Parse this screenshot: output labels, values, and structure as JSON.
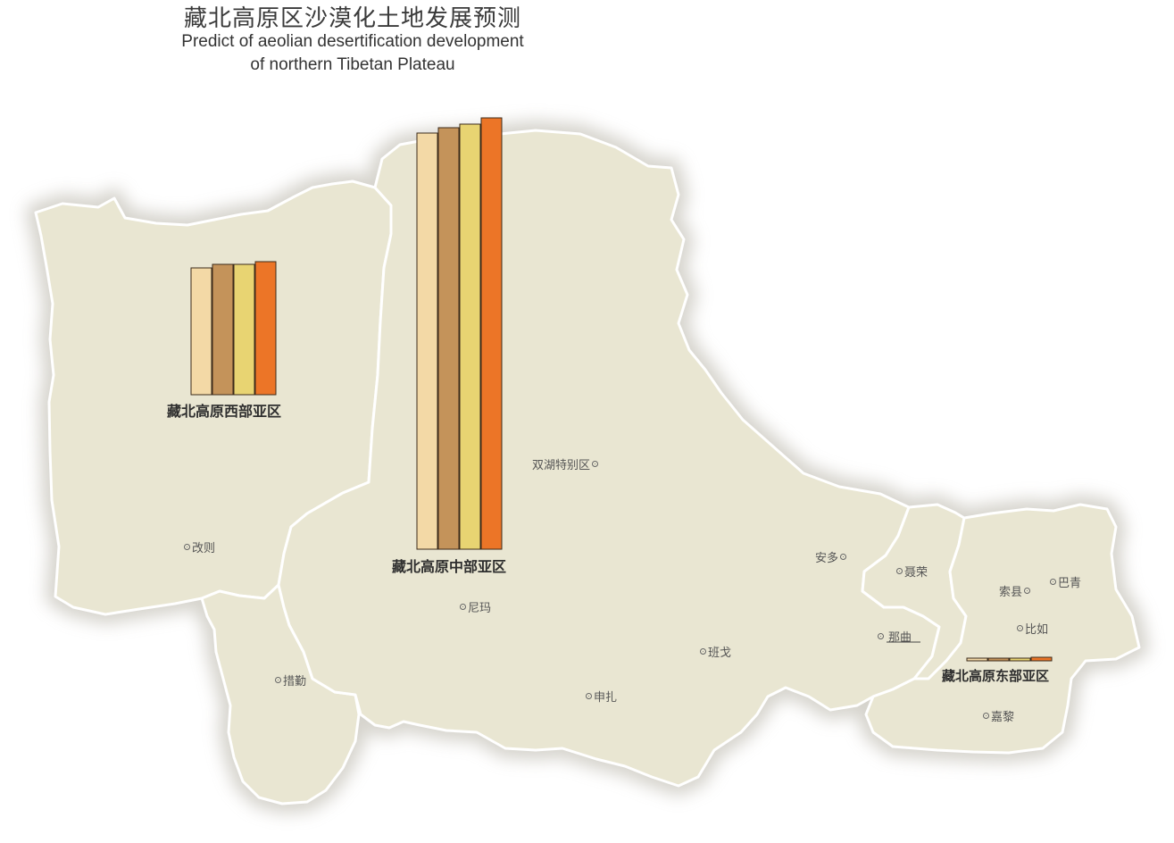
{
  "title": {
    "cn": "藏北高原区沙漠化土地发展预测",
    "en_line1": "Predict of aeolian desertification development",
    "en_line2": "of northern Tibetan Plateau"
  },
  "colors": {
    "land": "#e9e6d2",
    "border": "#ffffff",
    "shadow": "#cfccc4",
    "bar_colors": [
      "#f3d9a6",
      "#c4935a",
      "#e8d472",
      "#ec7527"
    ],
    "bar_stroke": "#3b2a1a"
  },
  "regions": {
    "west": {
      "name": "藏北高原西部亚区"
    },
    "central": {
      "name": "藏北高原中部亚区"
    },
    "east": {
      "name": "藏北高原东部亚区"
    }
  },
  "chart_data": [
    {
      "type": "bar",
      "region": "藏北高原西部亚区",
      "values": [
        142,
        146,
        146,
        149
      ]
    },
    {
      "type": "bar",
      "region": "藏北高原中部亚区",
      "values": [
        466,
        472,
        476,
        483
      ]
    },
    {
      "type": "bar",
      "region": "藏北高原东部亚区",
      "values": [
        3,
        3,
        3,
        4
      ]
    }
  ],
  "towns": {
    "gaize": "改则",
    "cuoqin": "措勤",
    "nima": "尼玛",
    "shuanghu": "双湖特别区",
    "shenzha": "申扎",
    "bange": "班戈",
    "anduo": "安多",
    "nierong": "聂荣",
    "naqu": "那曲",
    "suoxian": "索县",
    "baqing": "巴青",
    "biru": "比如",
    "jiali": "嘉黎"
  }
}
